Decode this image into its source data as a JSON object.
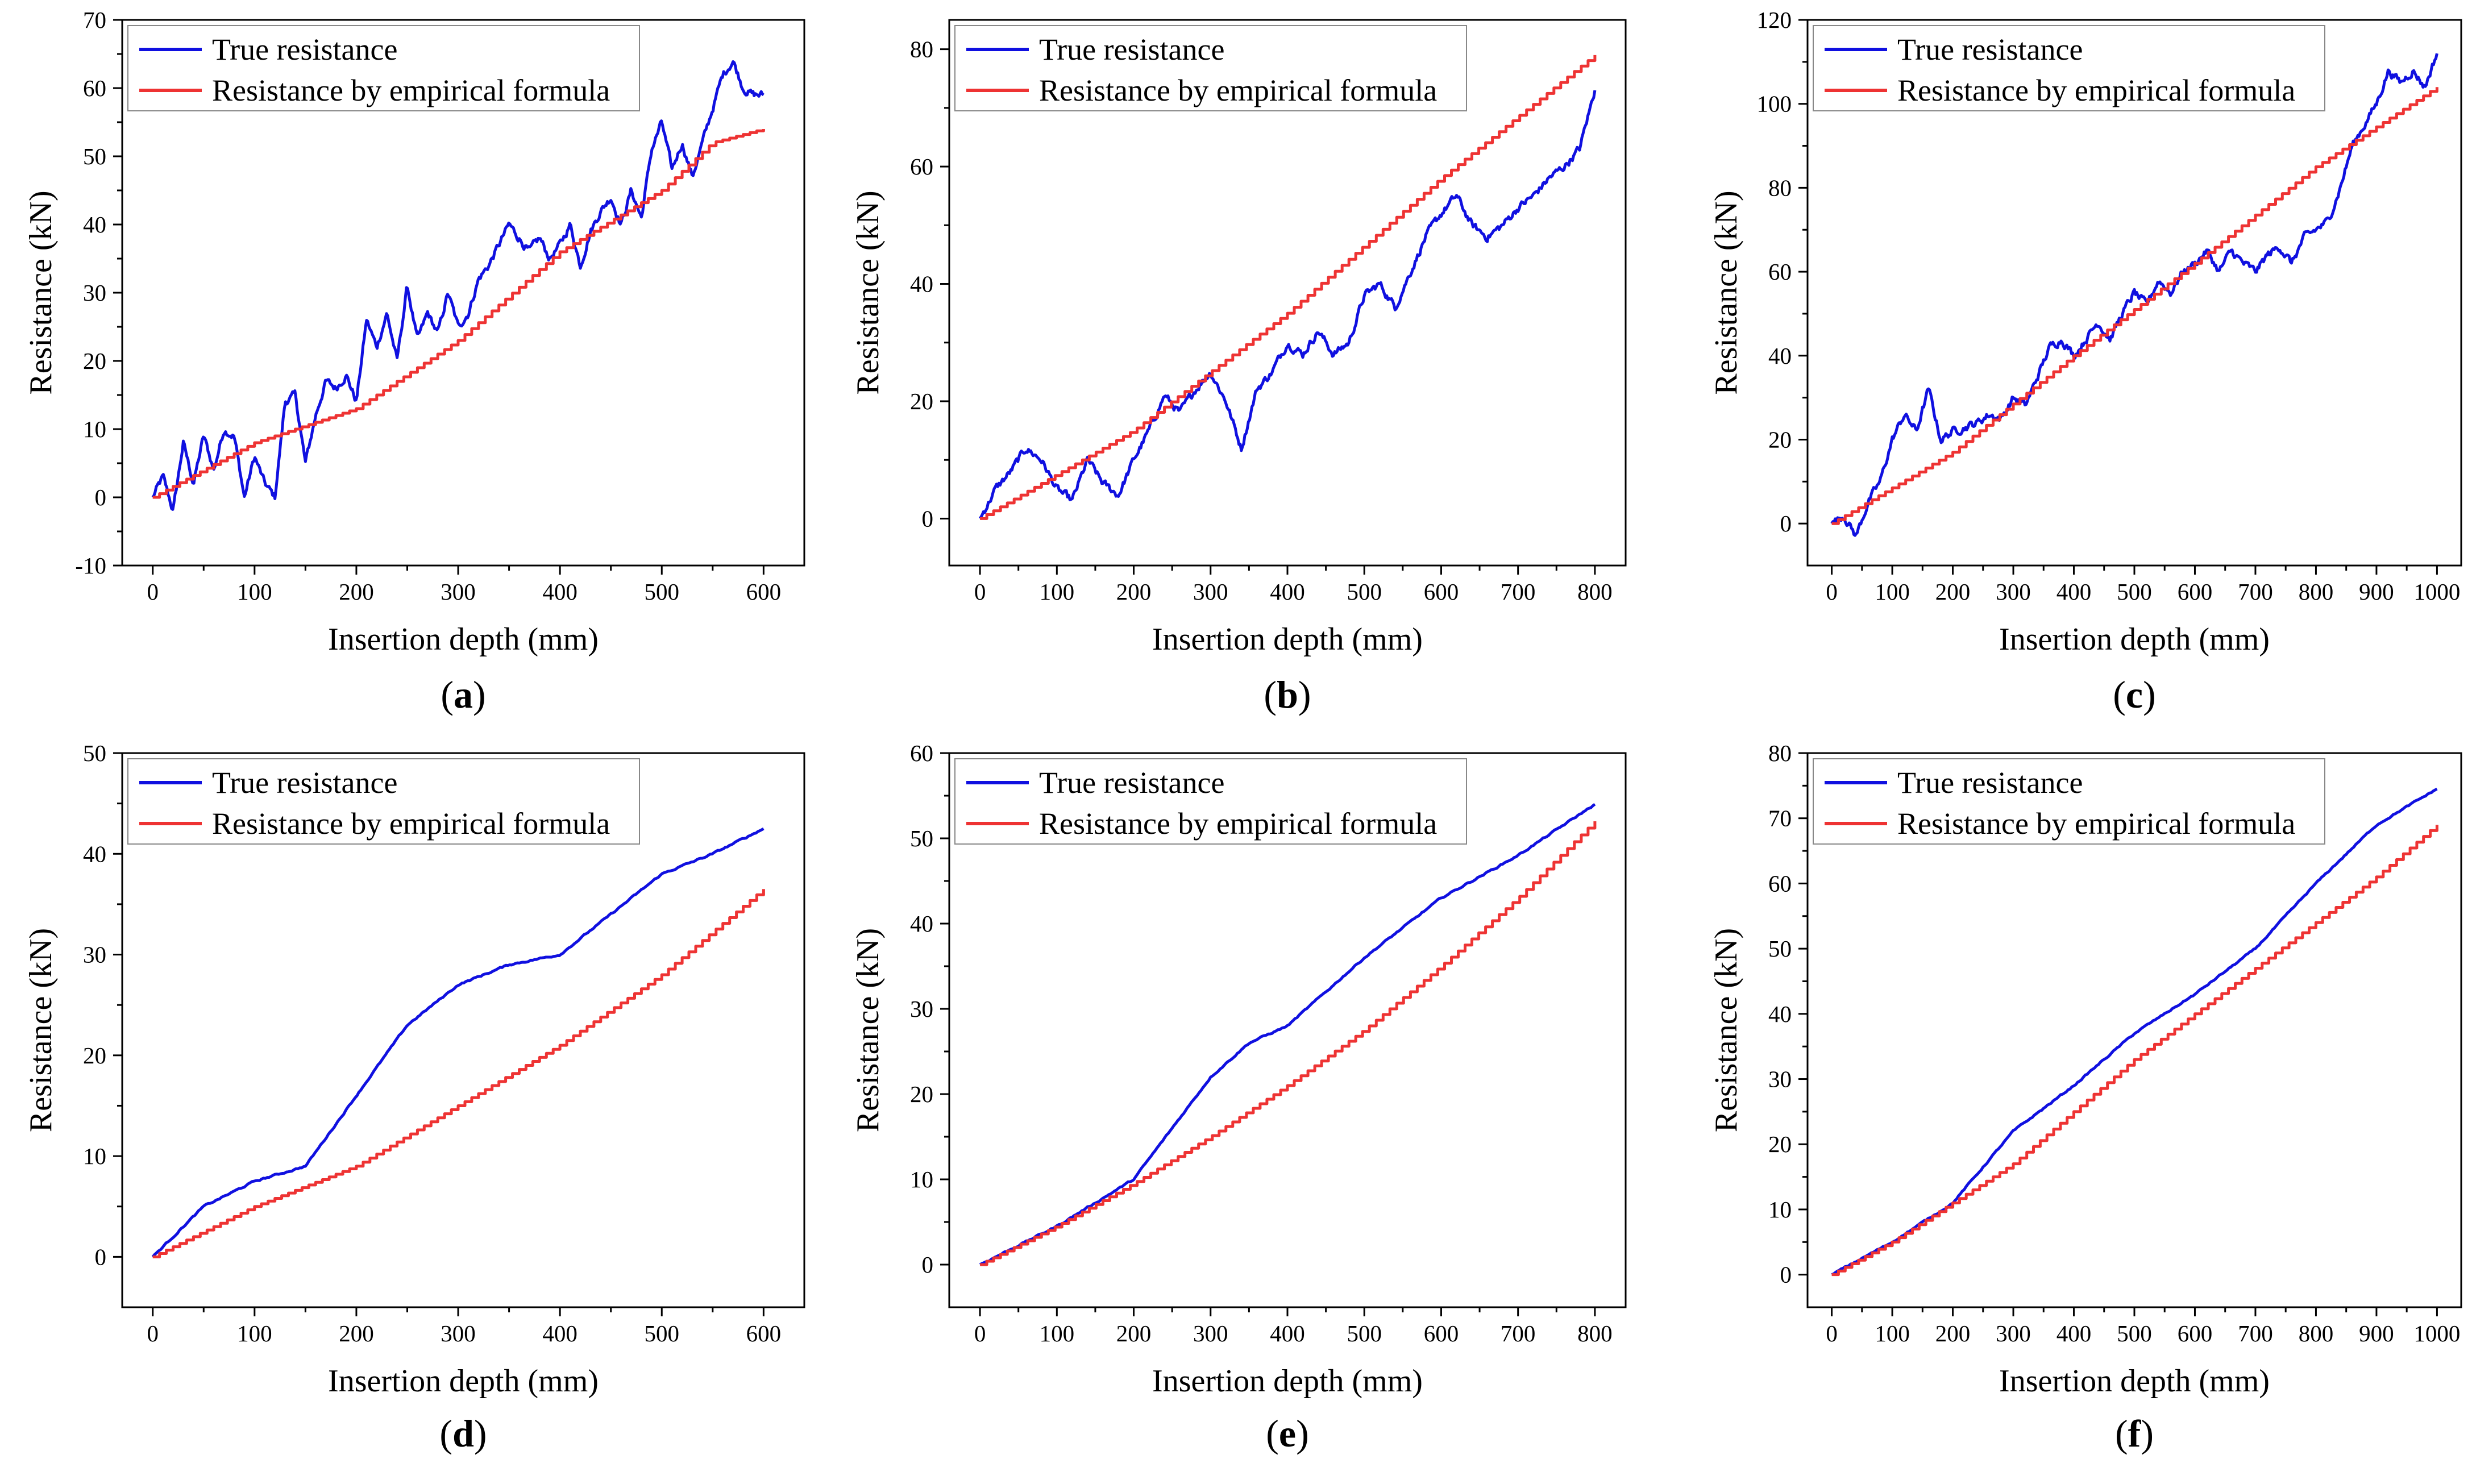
{
  "figure": {
    "captions": [
      "a",
      "b",
      "c",
      "d",
      "e",
      "f"
    ]
  },
  "colors": {
    "true_series": "#1010e0",
    "formula_series": "#ee3333",
    "axis": "#000000",
    "legend_border": "#888888"
  },
  "chart_data": [
    {
      "id": "a",
      "type": "line",
      "title": "",
      "xlabel": "Insertion depth (mm)",
      "ylabel": "Resistance (kN)",
      "xlim": [
        -30,
        640
      ],
      "ylim": [
        -10,
        70
      ],
      "xticks": [
        0,
        100,
        200,
        300,
        400,
        500,
        600
      ],
      "yticks": [
        -10,
        0,
        10,
        20,
        30,
        40,
        50,
        60,
        70
      ],
      "legend_position": "top-left",
      "series": [
        {
          "name": "True resistance",
          "style": "noisy",
          "x": [
            0,
            10,
            20,
            30,
            40,
            50,
            60,
            70,
            80,
            90,
            100,
            110,
            120,
            130,
            140,
            150,
            160,
            170,
            180,
            190,
            200,
            210,
            220,
            230,
            240,
            250,
            260,
            270,
            280,
            290,
            300,
            310,
            320,
            330,
            340,
            350,
            360,
            370,
            380,
            390,
            400,
            410,
            420,
            430,
            440,
            450,
            460,
            470,
            480,
            490,
            500,
            510,
            520,
            530,
            540,
            550,
            560,
            570,
            580,
            590,
            600
          ],
          "y": [
            0,
            3,
            -2,
            8,
            2,
            9,
            4,
            10,
            9,
            0,
            6,
            2,
            0,
            14,
            15,
            5,
            12,
            17,
            16,
            18,
            14,
            26,
            22,
            27,
            20,
            31,
            23,
            27,
            24,
            30,
            25,
            27,
            32,
            34,
            37,
            40,
            38,
            36,
            38,
            35,
            37,
            40,
            34,
            39,
            42,
            44,
            40,
            45,
            41,
            51,
            55,
            48,
            52,
            47,
            52,
            57,
            62,
            64,
            60,
            59,
            59
          ]
        },
        {
          "name": "Resistance by empirical formula",
          "style": "step",
          "x": [
            0,
            100,
            200,
            300,
            400,
            500,
            550,
            600
          ],
          "y": [
            0,
            8,
            13,
            23,
            36,
            45,
            52,
            54
          ]
        }
      ]
    },
    {
      "id": "b",
      "type": "line",
      "title": "",
      "xlabel": "Insertion depth (mm)",
      "ylabel": "Resistance (kN)",
      "xlim": [
        -40,
        840
      ],
      "ylim": [
        -8,
        85
      ],
      "xticks": [
        0,
        100,
        200,
        300,
        400,
        500,
        600,
        700,
        800
      ],
      "yticks": [
        0,
        20,
        40,
        60,
        80
      ],
      "legend_position": "top-left",
      "series": [
        {
          "name": "True resistance",
          "style": "noisy",
          "x": [
            0,
            20,
            40,
            60,
            80,
            100,
            120,
            140,
            160,
            180,
            200,
            220,
            240,
            260,
            280,
            300,
            320,
            340,
            360,
            380,
            400,
            420,
            440,
            460,
            480,
            500,
            520,
            540,
            560,
            580,
            600,
            620,
            640,
            660,
            680,
            700,
            720,
            740,
            760,
            780,
            800
          ],
          "y": [
            0,
            5,
            8,
            12,
            10,
            5,
            3,
            10,
            6,
            4,
            10,
            15,
            21,
            18,
            22,
            25,
            20,
            12,
            22,
            25,
            30,
            28,
            32,
            28,
            30,
            38,
            40,
            36,
            42,
            48,
            52,
            55,
            50,
            48,
            50,
            53,
            55,
            58,
            60,
            63,
            73
          ]
        },
        {
          "name": "Resistance by empirical formula",
          "style": "step",
          "x": [
            0,
            200,
            400,
            600,
            800
          ],
          "y": [
            0,
            15,
            35,
            58,
            79
          ]
        }
      ]
    },
    {
      "id": "c",
      "type": "line",
      "title": "",
      "xlabel": "Insertion depth (mm)",
      "ylabel": "Resistance (kN)",
      "xlim": [
        -40,
        1040
      ],
      "ylim": [
        -10,
        120
      ],
      "xticks": [
        0,
        100,
        200,
        300,
        400,
        500,
        600,
        700,
        800,
        900,
        1000
      ],
      "yticks": [
        0,
        20,
        40,
        60,
        80,
        100,
        120
      ],
      "legend_position": "top-left",
      "series": [
        {
          "name": "True resistance",
          "style": "noisy",
          "x": [
            0,
            20,
            40,
            60,
            80,
            100,
            120,
            140,
            160,
            180,
            200,
            220,
            240,
            260,
            280,
            300,
            320,
            340,
            360,
            380,
            400,
            420,
            440,
            460,
            480,
            500,
            520,
            540,
            560,
            580,
            600,
            620,
            640,
            660,
            680,
            700,
            720,
            740,
            760,
            780,
            800,
            820,
            840,
            860,
            880,
            900,
            920,
            940,
            960,
            980,
            1000
          ],
          "y": [
            0,
            2,
            -3,
            5,
            10,
            20,
            26,
            22,
            32,
            20,
            22,
            23,
            24,
            26,
            25,
            30,
            28,
            35,
            42,
            44,
            40,
            44,
            48,
            44,
            50,
            55,
            52,
            58,
            55,
            60,
            62,
            65,
            60,
            65,
            62,
            60,
            64,
            66,
            62,
            68,
            70,
            72,
            80,
            90,
            95,
            100,
            108,
            105,
            108,
            104,
            112
          ]
        },
        {
          "name": "Resistance by empirical formula",
          "style": "step",
          "x": [
            0,
            200,
            400,
            600,
            800,
            1000
          ],
          "y": [
            0,
            17,
            40,
            62,
            85,
            104
          ]
        }
      ]
    },
    {
      "id": "d",
      "type": "line",
      "title": "",
      "xlabel": "Insertion depth (mm)",
      "ylabel": "Resistance (kN)",
      "xlim": [
        -30,
        640
      ],
      "ylim": [
        -5,
        50
      ],
      "xticks": [
        0,
        100,
        200,
        300,
        400,
        500,
        600
      ],
      "yticks": [
        0,
        10,
        20,
        30,
        40,
        50
      ],
      "legend_position": "top-left",
      "series": [
        {
          "name": "True resistance",
          "style": "smooth",
          "x": [
            0,
            50,
            100,
            150,
            200,
            250,
            300,
            350,
            400,
            450,
            500,
            550,
            600
          ],
          "y": [
            0,
            5,
            7.5,
            9,
            16,
            23,
            27,
            29,
            30,
            34,
            38,
            40,
            42.5
          ]
        },
        {
          "name": "Resistance by empirical formula",
          "style": "step",
          "x": [
            0,
            100,
            200,
            300,
            400,
            500,
            600
          ],
          "y": [
            0,
            5,
            9,
            15,
            21,
            28,
            36.5
          ]
        }
      ]
    },
    {
      "id": "e",
      "type": "line",
      "title": "",
      "xlabel": "Insertion depth (mm)",
      "ylabel": "Resistance (kN)",
      "xlim": [
        -40,
        840
      ],
      "ylim": [
        -5,
        60
      ],
      "xticks": [
        0,
        100,
        200,
        300,
        400,
        500,
        600,
        700,
        800
      ],
      "yticks": [
        0,
        10,
        20,
        30,
        40,
        50,
        60
      ],
      "legend_position": "top-left",
      "series": [
        {
          "name": "True resistance",
          "style": "smooth",
          "x": [
            0,
            100,
            200,
            250,
            300,
            350,
            400,
            450,
            500,
            600,
            700,
            800
          ],
          "y": [
            0,
            4.5,
            10,
            16,
            22,
            26,
            28,
            32,
            36,
            43,
            48,
            54
          ]
        },
        {
          "name": "Resistance by empirical formula",
          "style": "step",
          "x": [
            0,
            100,
            200,
            300,
            400,
            500,
            600,
            700,
            800
          ],
          "y": [
            0,
            4.5,
            9.5,
            15,
            21,
            27.5,
            35,
            43,
            52
          ]
        }
      ]
    },
    {
      "id": "f",
      "type": "line",
      "title": "",
      "xlabel": "Insertion depth (mm)",
      "ylabel": "Resistance (kN)",
      "xlim": [
        -40,
        1040
      ],
      "ylim": [
        -5,
        80
      ],
      "xticks": [
        0,
        100,
        200,
        300,
        400,
        500,
        600,
        700,
        800,
        900,
        1000
      ],
      "yticks": [
        0,
        10,
        20,
        30,
        40,
        50,
        60,
        70,
        80
      ],
      "legend_position": "top-left",
      "series": [
        {
          "name": "True resistance",
          "style": "smooth",
          "x": [
            0,
            100,
            200,
            300,
            400,
            500,
            600,
            700,
            800,
            900,
            1000
          ],
          "y": [
            0,
            5,
            11,
            22,
            29,
            37,
            43,
            50,
            60,
            69,
            74.5
          ]
        },
        {
          "name": "Resistance by empirical formula",
          "style": "step",
          "x": [
            0,
            100,
            200,
            300,
            400,
            500,
            600,
            700,
            800,
            900,
            1000
          ],
          "y": [
            0,
            5,
            11,
            17,
            25,
            33,
            40,
            47,
            54,
            61,
            69
          ]
        }
      ]
    }
  ]
}
